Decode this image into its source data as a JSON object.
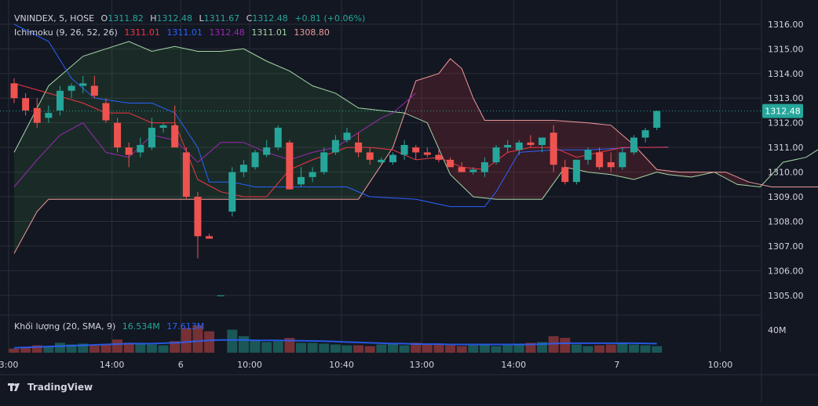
{
  "header": {
    "symbol": "VNINDEX, 5, HOSE",
    "o_label": "O",
    "o_value": "1311.82",
    "h_label": "H",
    "h_value": "1312.48",
    "l_label": "L",
    "l_value": "1311.67",
    "c_label": "C",
    "c_value": "1312.48",
    "change": "+0.81 (+0.06%)"
  },
  "ichimoku": {
    "label": "Ichimoku (9, 26, 52, 26)",
    "v1": "1311.01",
    "v2": "1311.01",
    "v3": "1312.48",
    "v4": "1311.01",
    "v5": "1308.80"
  },
  "volume": {
    "label": "Khối lượng (20, SMA, 9)",
    "v1": "16.534M",
    "v2": "17.613M"
  },
  "price_label": "1312.48",
  "brand": "TradingView",
  "colors": {
    "background": "#131722",
    "grid": "#2a2e39",
    "up": "#26a69a",
    "down": "#ef5350",
    "tenkan": "#f23645",
    "kijun": "#2962ff",
    "chikou": "#9c27b0",
    "span_a": "#a5d6a7",
    "span_b": "#ef9a9a",
    "text": "#d1d4dc",
    "price_tag": "#26a69a"
  },
  "chart_data": {
    "type": "candlestick",
    "y_ticks": [
      "1316.00",
      "1315.00",
      "1314.00",
      "1313.00",
      "1312.00",
      "1311.00",
      "1310.00",
      "1309.00",
      "1308.00",
      "1307.00",
      "1306.00",
      "1305.00"
    ],
    "ylim": [
      1304.2,
      1316.6
    ],
    "volume_tick": "40M",
    "x_ticks": [
      {
        "label": "3:00",
        "bar": 0
      },
      {
        "label": "14:00",
        "bar": 9
      },
      {
        "label": "6",
        "bar": 15
      },
      {
        "label": "10:00",
        "bar": 21
      },
      {
        "label": "10:40",
        "bar": 29
      },
      {
        "label": "13:00",
        "bar": 36
      },
      {
        "label": "14:00",
        "bar": 44
      },
      {
        "label": "7",
        "bar": 53
      },
      {
        "label": "10:00",
        "bar": 62
      }
    ],
    "n_slots": 63,
    "candles": [
      {
        "o": 1313.6,
        "h": 1313.8,
        "l": 1312.8,
        "c": 1313.0
      },
      {
        "o": 1313.0,
        "h": 1313.2,
        "l": 1312.3,
        "c": 1312.5
      },
      {
        "o": 1312.6,
        "h": 1313.0,
        "l": 1311.8,
        "c": 1312.0
      },
      {
        "o": 1312.2,
        "h": 1312.7,
        "l": 1312.0,
        "c": 1312.4
      },
      {
        "o": 1312.5,
        "h": 1313.5,
        "l": 1312.3,
        "c": 1313.3
      },
      {
        "o": 1313.3,
        "h": 1313.6,
        "l": 1313.0,
        "c": 1313.5
      },
      {
        "o": 1313.5,
        "h": 1313.9,
        "l": 1313.2,
        "c": 1313.6
      },
      {
        "o": 1313.5,
        "h": 1313.9,
        "l": 1313.0,
        "c": 1313.1
      },
      {
        "o": 1312.8,
        "h": 1313.0,
        "l": 1312.0,
        "c": 1312.1
      },
      {
        "o": 1312.0,
        "h": 1312.2,
        "l": 1310.8,
        "c": 1311.0
      },
      {
        "o": 1311.0,
        "h": 1311.2,
        "l": 1310.2,
        "c": 1310.7
      },
      {
        "o": 1310.8,
        "h": 1311.4,
        "l": 1310.6,
        "c": 1311.1
      },
      {
        "o": 1311.0,
        "h": 1312.2,
        "l": 1310.9,
        "c": 1311.8
      },
      {
        "o": 1311.8,
        "h": 1312.0,
        "l": 1311.6,
        "c": 1311.9
      },
      {
        "o": 1311.9,
        "h": 1312.7,
        "l": 1311.0,
        "c": 1311.0
      },
      {
        "o": 1310.8,
        "h": 1311.0,
        "l": 1308.9,
        "c": 1309.0
      },
      {
        "o": 1309.0,
        "h": 1309.2,
        "l": 1306.5,
        "c": 1307.4
      },
      {
        "o": 1307.4,
        "h": 1307.5,
        "l": 1307.3,
        "c": 1307.3
      },
      {
        "o": 1305.0,
        "h": 1305.0,
        "l": 1305.0,
        "c": 1305.0
      },
      {
        "o": 1308.4,
        "h": 1310.2,
        "l": 1308.2,
        "c": 1310.0
      },
      {
        "o": 1310.0,
        "h": 1310.5,
        "l": 1309.8,
        "c": 1310.3
      },
      {
        "o": 1310.2,
        "h": 1310.9,
        "l": 1310.1,
        "c": 1310.8
      },
      {
        "o": 1310.7,
        "h": 1311.3,
        "l": 1310.6,
        "c": 1311.0
      },
      {
        "o": 1311.0,
        "h": 1311.9,
        "l": 1310.9,
        "c": 1311.8
      },
      {
        "o": 1311.2,
        "h": 1311.3,
        "l": 1309.3,
        "c": 1309.3
      },
      {
        "o": 1309.5,
        "h": 1310.2,
        "l": 1309.4,
        "c": 1309.8
      },
      {
        "o": 1309.8,
        "h": 1310.2,
        "l": 1309.6,
        "c": 1310.0
      },
      {
        "o": 1310.0,
        "h": 1311.0,
        "l": 1309.9,
        "c": 1310.8
      },
      {
        "o": 1310.8,
        "h": 1311.5,
        "l": 1310.7,
        "c": 1311.3
      },
      {
        "o": 1311.3,
        "h": 1311.8,
        "l": 1311.2,
        "c": 1311.6
      },
      {
        "o": 1311.2,
        "h": 1311.6,
        "l": 1310.6,
        "c": 1310.8
      },
      {
        "o": 1310.8,
        "h": 1311.0,
        "l": 1310.3,
        "c": 1310.5
      },
      {
        "o": 1310.4,
        "h": 1310.6,
        "l": 1310.3,
        "c": 1310.5
      },
      {
        "o": 1310.4,
        "h": 1310.8,
        "l": 1310.3,
        "c": 1310.7
      },
      {
        "o": 1310.7,
        "h": 1311.3,
        "l": 1310.5,
        "c": 1311.1
      },
      {
        "o": 1311.0,
        "h": 1311.1,
        "l": 1310.5,
        "c": 1310.8
      },
      {
        "o": 1310.8,
        "h": 1311.0,
        "l": 1310.6,
        "c": 1310.7
      },
      {
        "o": 1310.7,
        "h": 1310.9,
        "l": 1310.4,
        "c": 1310.5
      },
      {
        "o": 1310.5,
        "h": 1310.6,
        "l": 1310.2,
        "c": 1310.2
      },
      {
        "o": 1310.2,
        "h": 1310.4,
        "l": 1310.0,
        "c": 1310.0
      },
      {
        "o": 1310.0,
        "h": 1310.2,
        "l": 1309.9,
        "c": 1310.1
      },
      {
        "o": 1310.0,
        "h": 1310.6,
        "l": 1309.8,
        "c": 1310.4
      },
      {
        "o": 1310.4,
        "h": 1311.1,
        "l": 1310.3,
        "c": 1311.0
      },
      {
        "o": 1311.0,
        "h": 1311.3,
        "l": 1310.8,
        "c": 1311.1
      },
      {
        "o": 1310.9,
        "h": 1311.3,
        "l": 1310.7,
        "c": 1311.2
      },
      {
        "o": 1311.2,
        "h": 1311.5,
        "l": 1311.0,
        "c": 1311.1
      },
      {
        "o": 1311.1,
        "h": 1311.4,
        "l": 1310.8,
        "c": 1311.4
      },
      {
        "o": 1311.6,
        "h": 1311.9,
        "l": 1310.0,
        "c": 1310.3
      },
      {
        "o": 1310.2,
        "h": 1310.5,
        "l": 1309.5,
        "c": 1309.6
      },
      {
        "o": 1309.6,
        "h": 1310.5,
        "l": 1309.5,
        "c": 1310.5
      },
      {
        "o": 1310.5,
        "h": 1311.0,
        "l": 1310.3,
        "c": 1310.9
      },
      {
        "o": 1310.8,
        "h": 1311.0,
        "l": 1310.1,
        "c": 1310.2
      },
      {
        "o": 1310.4,
        "h": 1310.8,
        "l": 1310.0,
        "c": 1310.2
      },
      {
        "o": 1310.2,
        "h": 1311.0,
        "l": 1310.1,
        "c": 1310.8
      },
      {
        "o": 1310.8,
        "h": 1311.5,
        "l": 1310.7,
        "c": 1311.4
      },
      {
        "o": 1311.4,
        "h": 1311.8,
        "l": 1311.2,
        "c": 1311.7
      },
      {
        "o": 1311.8,
        "h": 1312.5,
        "l": 1311.7,
        "c": 1312.48
      }
    ],
    "tenkan": [
      [
        0,
        1313.6
      ],
      [
        3,
        1313.2
      ],
      [
        6,
        1312.8
      ],
      [
        8,
        1312.4
      ],
      [
        10,
        1312.4
      ],
      [
        12,
        1312.0
      ],
      [
        14,
        1312.0
      ],
      [
        16,
        1309.7
      ],
      [
        18,
        1309.2
      ],
      [
        20,
        1309.0
      ],
      [
        22,
        1309.0
      ],
      [
        24,
        1310.1
      ],
      [
        26,
        1310.5
      ],
      [
        29,
        1311.0
      ],
      [
        31,
        1311.0
      ],
      [
        33,
        1310.9
      ],
      [
        35,
        1310.5
      ],
      [
        37,
        1310.6
      ],
      [
        39,
        1310.2
      ],
      [
        41,
        1310.1
      ],
      [
        43,
        1310.8
      ],
      [
        45,
        1311.0
      ],
      [
        47,
        1311.0
      ],
      [
        49,
        1310.6
      ],
      [
        51,
        1310.8
      ],
      [
        53,
        1311.0
      ],
      [
        55,
        1311.0
      ],
      [
        57,
        1311.01
      ]
    ],
    "kijun": [
      [
        0,
        1316.0
      ],
      [
        3,
        1315.3
      ],
      [
        5,
        1313.8
      ],
      [
        7,
        1313.0
      ],
      [
        10,
        1312.8
      ],
      [
        12,
        1312.8
      ],
      [
        14,
        1312.4
      ],
      [
        16,
        1311.0
      ],
      [
        17,
        1309.6
      ],
      [
        19,
        1309.6
      ],
      [
        21,
        1309.4
      ],
      [
        24,
        1309.4
      ],
      [
        26,
        1309.4
      ],
      [
        29,
        1309.4
      ],
      [
        31,
        1309.0
      ],
      [
        35,
        1308.9
      ],
      [
        38,
        1308.6
      ],
      [
        41,
        1308.6
      ],
      [
        42,
        1309.2
      ],
      [
        44,
        1310.8
      ],
      [
        47,
        1310.9
      ],
      [
        50,
        1310.9
      ],
      [
        54,
        1311.0
      ],
      [
        57,
        1311.01
      ]
    ],
    "chikou": [
      [
        0,
        1309.4
      ],
      [
        2,
        1310.5
      ],
      [
        4,
        1311.5
      ],
      [
        6,
        1312.0
      ],
      [
        8,
        1310.8
      ],
      [
        10,
        1310.6
      ],
      [
        12,
        1311.5
      ],
      [
        14,
        1311.3
      ],
      [
        16,
        1310.4
      ],
      [
        18,
        1311.2
      ],
      [
        20,
        1311.2
      ],
      [
        22,
        1310.8
      ],
      [
        24,
        1310.5
      ],
      [
        26,
        1310.8
      ],
      [
        28,
        1311.0
      ],
      [
        30,
        1311.6
      ],
      [
        32,
        1312.2
      ],
      [
        33,
        1312.4
      ],
      [
        35,
        1313.2
      ]
    ],
    "span_a": [
      [
        0,
        1310.8
      ],
      [
        3,
        1313.5
      ],
      [
        6,
        1314.7
      ],
      [
        8,
        1315.0
      ],
      [
        10,
        1315.3
      ],
      [
        12,
        1314.9
      ],
      [
        14,
        1315.1
      ],
      [
        16,
        1314.9
      ],
      [
        18,
        1314.9
      ],
      [
        20,
        1315.0
      ],
      [
        22,
        1314.5
      ],
      [
        24,
        1314.1
      ],
      [
        26,
        1313.5
      ],
      [
        28,
        1313.2
      ],
      [
        30,
        1312.6
      ],
      [
        32,
        1312.5
      ],
      [
        34,
        1312.4
      ],
      [
        36,
        1312.0
      ],
      [
        38,
        1309.9
      ],
      [
        40,
        1309.0
      ],
      [
        42,
        1308.9
      ],
      [
        44,
        1308.9
      ],
      [
        46,
        1308.9
      ],
      [
        48,
        1310.2
      ],
      [
        50,
        1310.0
      ],
      [
        52,
        1309.9
      ],
      [
        54,
        1309.7
      ],
      [
        56,
        1310.0
      ],
      [
        57,
        1309.9
      ],
      [
        59,
        1309.8
      ],
      [
        61,
        1310.0
      ],
      [
        63,
        1309.5
      ],
      [
        65,
        1309.4
      ],
      [
        67,
        1310.4
      ],
      [
        69,
        1310.6
      ],
      [
        70,
        1310.9
      ],
      [
        73,
        1310.9
      ],
      [
        76,
        1310.9
      ],
      [
        78,
        1310.9
      ],
      [
        80,
        1311.0
      ]
    ],
    "span_b": [
      [
        0,
        1306.7
      ],
      [
        2,
        1308.4
      ],
      [
        3,
        1308.9
      ],
      [
        10,
        1308.9
      ],
      [
        20,
        1308.9
      ],
      [
        30,
        1308.9
      ],
      [
        33,
        1311.0
      ],
      [
        35,
        1313.7
      ],
      [
        37,
        1314.0
      ],
      [
        38,
        1314.6
      ],
      [
        39,
        1314.2
      ],
      [
        40,
        1313.0
      ],
      [
        41,
        1312.1
      ],
      [
        44,
        1312.1
      ],
      [
        47,
        1312.1
      ],
      [
        50,
        1312.0
      ],
      [
        52,
        1311.9
      ],
      [
        54,
        1311.1
      ],
      [
        56,
        1310.1
      ],
      [
        58,
        1310.0
      ],
      [
        60,
        1310.0
      ],
      [
        62,
        1310.0
      ],
      [
        64,
        1309.6
      ],
      [
        66,
        1309.4
      ],
      [
        68,
        1309.4
      ],
      [
        70,
        1309.4
      ],
      [
        75,
        1309.4
      ],
      [
        78,
        1309.4
      ],
      [
        80,
        1308.8
      ]
    ],
    "volumes": [
      5,
      7,
      9,
      8,
      12,
      10,
      11,
      9,
      10,
      16,
      12,
      11,
      10,
      9,
      14,
      30,
      33,
      26,
      0,
      28,
      20,
      15,
      13,
      14,
      18,
      12,
      12,
      11,
      10,
      9,
      9,
      8,
      10,
      11,
      9,
      12,
      10,
      10,
      9,
      8,
      9,
      10,
      8,
      9,
      11,
      12,
      13,
      20,
      18,
      10,
      8,
      9,
      10,
      12,
      10,
      9,
      8
    ],
    "volume_sma": [
      6,
      6.5,
      7,
      7.5,
      8,
      8.5,
      9,
      9.5,
      10,
      10.5,
      11,
      11,
      11,
      11.5,
      12,
      13,
      14,
      15,
      15.5,
      15.5,
      15.5,
      15,
      15,
      15,
      14.8,
      14.5,
      14.3,
      14,
      13.5,
      13,
      12.5,
      12,
      11.5,
      11,
      11,
      10.5,
      10.5,
      10.5,
      10,
      10,
      10,
      10,
      10,
      10,
      10,
      10,
      10.5,
      11,
      11.5,
      11.5,
      11.5,
      11.5,
      11.5,
      11.5,
      11.5,
      11.3,
      11
    ]
  }
}
